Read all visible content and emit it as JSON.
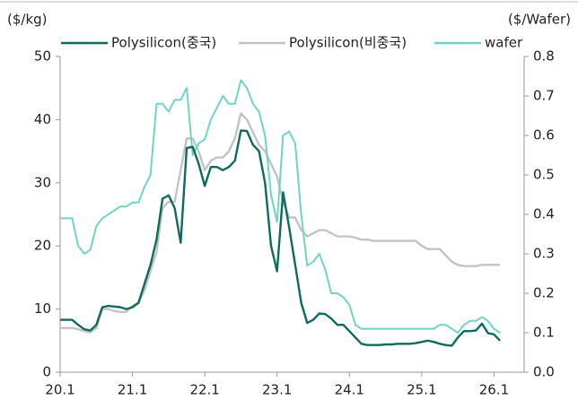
{
  "chart_data": {
    "type": "line",
    "y_label": "($/kg)",
    "y2_label": "($/Wafer)",
    "x": [
      "2020-01",
      "2020-02",
      "2020-03",
      "2020-04",
      "2020-05",
      "2020-06",
      "2020-07",
      "2020-08",
      "2020-09",
      "2020-10",
      "2020-11",
      "2020-12",
      "2021-01",
      "2021-02",
      "2021-03",
      "2021-04",
      "2021-05",
      "2021-06",
      "2021-07",
      "2021-08",
      "2021-09",
      "2021-10",
      "2021-11",
      "2021-12",
      "2022-01",
      "2022-02",
      "2022-03",
      "2022-04",
      "2022-05",
      "2022-06",
      "2022-07",
      "2022-08",
      "2022-09",
      "2022-10",
      "2022-11",
      "2022-12",
      "2023-01",
      "2023-02",
      "2023-03",
      "2023-04",
      "2023-05",
      "2023-06",
      "2023-07",
      "2023-08",
      "2023-09",
      "2023-10",
      "2023-11",
      "2023-12",
      "2024-01",
      "2024-02",
      "2024-03",
      "2024-04",
      "2024-05",
      "2024-06",
      "2024-07",
      "2024-08",
      "2024-09",
      "2024-10",
      "2024-11",
      "2024-12",
      "2025-01",
      "2025-02",
      "2025-03",
      "2025-04",
      "2025-05",
      "2025-06",
      "2025-07",
      "2025-08",
      "2025-09",
      "2025-10",
      "2025-11",
      "2025-12",
      "2026-01",
      "2026-02"
    ],
    "series": [
      {
        "name": "Polysilicon(중국)",
        "color": "#0f6b5c",
        "axis": "y",
        "values": [
          8.3,
          8.3,
          8.3,
          7.5,
          6.8,
          6.6,
          7.5,
          10.3,
          10.5,
          10.4,
          10.3,
          10.0,
          10.3,
          11,
          14,
          17,
          21,
          27.5,
          28,
          26,
          20.5,
          35.5,
          35.7,
          33,
          29.5,
          32.5,
          32.5,
          32,
          32.5,
          33.5,
          38.3,
          38.2,
          36,
          35,
          30,
          20,
          16,
          28.5,
          23,
          17,
          11,
          7.8,
          8.3,
          9.3,
          9.2,
          8.5,
          7.5,
          7.5,
          6.5,
          5.5,
          4.5,
          4.3,
          4.3,
          4.3,
          4.4,
          4.4,
          4.5,
          4.5,
          4.5,
          4.6,
          4.8,
          5,
          4.8,
          4.5,
          4.3,
          4.2,
          5.5,
          6.5,
          6.5,
          6.6,
          7.7,
          6.2,
          6.0,
          5.0
        ]
      },
      {
        "name": "Polysilicon(비중국)",
        "color": "#c3c3c3",
        "axis": "y",
        "values": [
          7.0,
          7.0,
          7.0,
          6.8,
          6.5,
          6.3,
          7,
          10,
          10,
          9.7,
          9.5,
          9.6,
          10.5,
          11,
          13,
          16,
          19,
          26,
          27,
          27,
          32,
          37,
          37,
          35,
          32,
          33.5,
          34,
          34,
          35,
          37,
          41,
          40,
          38,
          36,
          35,
          33,
          31,
          27,
          24.5,
          24.5,
          22.5,
          21.5,
          22,
          22.5,
          22.5,
          22,
          21.5,
          21.5,
          21.5,
          21.3,
          21,
          21,
          20.8,
          20.8,
          20.8,
          20.8,
          20.8,
          20.8,
          20.8,
          20.8,
          20,
          19.5,
          19.5,
          19.5,
          18.5,
          17.5,
          17,
          16.8,
          16.8,
          16.8,
          17,
          17,
          17,
          17
        ]
      },
      {
        "name": "wafer",
        "color": "#6fd4c6",
        "axis": "y2",
        "values": [
          0.39,
          0.39,
          0.39,
          0.32,
          0.3,
          0.31,
          0.37,
          0.39,
          0.4,
          0.41,
          0.42,
          0.42,
          0.43,
          0.43,
          0.47,
          0.5,
          0.68,
          0.68,
          0.66,
          0.69,
          0.69,
          0.72,
          0.55,
          0.58,
          0.59,
          0.64,
          0.67,
          0.7,
          0.68,
          0.68,
          0.74,
          0.72,
          0.68,
          0.66,
          0.6,
          0.45,
          0.38,
          0.6,
          0.61,
          0.58,
          0.4,
          0.27,
          0.28,
          0.3,
          0.26,
          0.2,
          0.2,
          0.19,
          0.17,
          0.12,
          0.11,
          0.11,
          0.11,
          0.11,
          0.11,
          0.11,
          0.11,
          0.11,
          0.11,
          0.11,
          0.11,
          0.11,
          0.11,
          0.12,
          0.12,
          0.11,
          0.1,
          0.12,
          0.13,
          0.13,
          0.14,
          0.13,
          0.11,
          0.1
        ]
      }
    ],
    "xlim": [
      "2020-01",
      "2026-06"
    ],
    "xticks": [
      {
        "value": "2020-01",
        "label": "20.1"
      },
      {
        "value": "2021-01",
        "label": "21.1"
      },
      {
        "value": "2022-01",
        "label": "22.1"
      },
      {
        "value": "2023-01",
        "label": "23.1"
      },
      {
        "value": "2024-01",
        "label": "24.1"
      },
      {
        "value": "2025-01",
        "label": "25.1"
      },
      {
        "value": "2026-01",
        "label": "26.1"
      }
    ],
    "ylim": [
      0,
      50
    ],
    "yticks": [
      0,
      10,
      20,
      30,
      40,
      50
    ],
    "y2lim": [
      0,
      0.8
    ],
    "y2ticks": [
      {
        "value": 0,
        "label": "0.0"
      },
      {
        "value": 0.1,
        "label": "0.1"
      },
      {
        "value": 0.2,
        "label": "0.2"
      },
      {
        "value": 0.3,
        "label": "0.3"
      },
      {
        "value": 0.4,
        "label": "0.4"
      },
      {
        "value": 0.5,
        "label": "0.5"
      },
      {
        "value": 0.6,
        "label": "0.6"
      },
      {
        "value": 0.7,
        "label": "0.7"
      },
      {
        "value": 0.8,
        "label": "0.8"
      }
    ],
    "grid": false,
    "legend": "top"
  }
}
